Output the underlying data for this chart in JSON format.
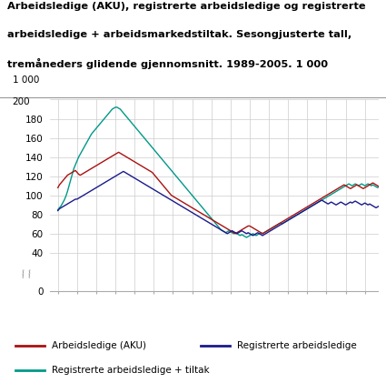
{
  "title_line1": "Arbeidsledige (AKU), registrerte arbeidsledige og registrerte",
  "title_line2": "arbeidsledige + arbeidsmarkedstiltak. Sesongjusterte tall,",
  "title_line3": "tremåneders glidende gjennomsnitt. 1989-2005. 1 000",
  "ylabel_top": "1 000",
  "ylim": [
    0,
    200
  ],
  "yticks": [
    0,
    40,
    60,
    80,
    100,
    120,
    140,
    160,
    180,
    200
  ],
  "color_aku": "#aa1111",
  "color_reg": "#1a1a8c",
  "color_tiltak": "#009988",
  "legend_labels": [
    "Arbeidsledige (AKU)",
    "Registrerte arbeidsledige",
    "Registrerte arbeidsledige + tiltak"
  ],
  "aku": [
    108,
    111,
    113,
    115,
    117,
    119,
    121,
    122,
    123,
    124,
    125,
    126,
    124,
    122,
    121,
    122,
    123,
    124,
    125,
    126,
    127,
    128,
    129,
    130,
    131,
    132,
    133,
    134,
    135,
    136,
    137,
    138,
    139,
    140,
    141,
    142,
    143,
    144,
    145,
    144,
    143,
    142,
    141,
    140,
    139,
    138,
    137,
    136,
    135,
    134,
    133,
    132,
    131,
    130,
    129,
    128,
    127,
    126,
    125,
    124,
    122,
    120,
    118,
    116,
    114,
    112,
    110,
    108,
    106,
    104,
    102,
    100,
    99,
    98,
    97,
    96,
    95,
    94,
    93,
    92,
    91,
    90,
    89,
    88,
    87,
    86,
    85,
    84,
    83,
    82,
    81,
    80,
    79,
    78,
    77,
    76,
    75,
    74,
    73,
    72,
    71,
    70,
    69,
    68,
    67,
    66,
    65,
    64,
    63,
    62,
    61,
    60,
    61,
    62,
    63,
    64,
    65,
    66,
    67,
    68,
    68,
    67,
    66,
    65,
    64,
    63,
    62,
    61,
    60,
    61,
    62,
    63,
    64,
    65,
    66,
    67,
    68,
    69,
    70,
    71,
    72,
    73,
    74,
    75,
    76,
    77,
    78,
    79,
    80,
    81,
    82,
    83,
    84,
    85,
    86,
    87,
    88,
    89,
    90,
    91,
    92,
    93,
    94,
    95,
    96,
    97,
    98,
    99,
    100,
    101,
    102,
    103,
    104,
    105,
    106,
    107,
    108,
    109,
    110,
    111,
    110,
    109,
    108,
    107,
    108,
    109,
    110,
    111,
    110,
    109,
    108,
    107,
    108,
    109,
    110,
    111,
    112,
    113,
    112,
    111,
    110,
    109,
    108,
    107,
    108,
    109,
    110,
    111,
    112,
    113,
    114,
    115,
    116,
    117,
    118,
    119,
    118,
    117,
    116,
    115,
    114,
    113,
    112,
    111,
    112,
    113,
    114,
    115,
    116,
    115,
    116,
    117,
    118,
    119,
    120,
    119,
    118,
    117,
    116,
    115
  ],
  "reg": [
    84,
    86,
    87,
    88,
    89,
    90,
    91,
    92,
    93,
    94,
    95,
    96,
    96,
    97,
    98,
    99,
    100,
    101,
    102,
    103,
    104,
    105,
    106,
    107,
    108,
    109,
    110,
    111,
    112,
    113,
    114,
    115,
    116,
    117,
    118,
    119,
    120,
    121,
    122,
    123,
    124,
    125,
    124,
    123,
    122,
    121,
    120,
    119,
    118,
    117,
    116,
    115,
    114,
    113,
    112,
    111,
    110,
    109,
    108,
    107,
    106,
    105,
    104,
    103,
    102,
    101,
    100,
    99,
    98,
    97,
    96,
    95,
    94,
    93,
    92,
    91,
    90,
    89,
    88,
    87,
    86,
    85,
    84,
    83,
    82,
    81,
    80,
    79,
    78,
    77,
    76,
    75,
    74,
    73,
    72,
    71,
    70,
    69,
    68,
    67,
    66,
    65,
    64,
    63,
    62,
    61,
    60,
    61,
    62,
    63,
    62,
    61,
    60,
    61,
    62,
    63,
    62,
    61,
    60,
    61,
    60,
    59,
    58,
    59,
    60,
    61,
    60,
    59,
    58,
    59,
    60,
    61,
    62,
    63,
    64,
    65,
    66,
    67,
    68,
    69,
    70,
    71,
    72,
    73,
    74,
    75,
    76,
    77,
    78,
    79,
    80,
    81,
    82,
    83,
    84,
    85,
    86,
    87,
    88,
    89,
    90,
    91,
    92,
    93,
    94,
    95,
    94,
    93,
    92,
    91,
    92,
    93,
    92,
    91,
    90,
    91,
    92,
    93,
    92,
    91,
    90,
    91,
    92,
    93,
    92,
    93,
    94,
    93,
    92,
    91,
    90,
    91,
    92,
    91,
    90,
    91,
    90,
    89,
    88,
    87,
    88,
    89,
    90,
    89,
    88,
    87,
    88,
    89,
    88,
    87,
    86,
    85,
    86,
    87,
    86,
    85,
    84,
    85,
    86,
    85,
    84,
    83,
    84,
    85,
    84,
    83,
    82,
    83,
    84,
    83,
    82,
    83,
    82,
    81,
    80,
    81,
    80,
    81,
    80,
    81,
    80,
    81,
    80,
    81,
    80,
    81
  ],
  "tiltak": [
    85,
    87,
    89,
    92,
    95,
    99,
    104,
    110,
    116,
    122,
    128,
    132,
    136,
    140,
    143,
    146,
    149,
    152,
    155,
    158,
    161,
    164,
    166,
    168,
    170,
    172,
    174,
    176,
    178,
    180,
    182,
    184,
    186,
    188,
    190,
    191,
    192,
    192,
    191,
    190,
    188,
    186,
    184,
    182,
    180,
    178,
    176,
    174,
    172,
    170,
    168,
    166,
    164,
    162,
    160,
    158,
    156,
    154,
    152,
    150,
    148,
    146,
    144,
    142,
    140,
    138,
    136,
    134,
    132,
    130,
    128,
    126,
    124,
    122,
    120,
    118,
    116,
    114,
    112,
    110,
    108,
    106,
    104,
    102,
    100,
    98,
    96,
    94,
    92,
    90,
    88,
    86,
    84,
    82,
    80,
    78,
    76,
    74,
    72,
    70,
    68,
    66,
    64,
    63,
    62,
    61,
    62,
    63,
    62,
    61,
    60,
    61,
    60,
    59,
    58,
    59,
    58,
    57,
    56,
    57,
    58,
    59,
    60,
    59,
    58,
    59,
    60,
    61,
    60,
    61,
    62,
    63,
    64,
    65,
    66,
    67,
    68,
    69,
    70,
    71,
    70,
    71,
    72,
    73,
    74,
    75,
    76,
    77,
    78,
    79,
    80,
    81,
    82,
    83,
    84,
    85,
    86,
    87,
    88,
    89,
    90,
    91,
    92,
    93,
    94,
    95,
    96,
    97,
    98,
    99,
    100,
    101,
    102,
    103,
    104,
    105,
    106,
    107,
    108,
    109,
    110,
    111,
    112,
    111,
    110,
    111,
    112,
    111,
    110,
    111,
    112,
    111,
    110,
    111,
    112,
    111,
    110,
    111,
    110,
    109,
    108,
    109,
    110,
    109,
    108,
    107,
    108,
    107,
    106,
    107,
    108,
    107,
    106,
    105,
    104,
    103,
    102,
    101,
    100,
    101,
    100,
    99,
    100,
    99,
    98,
    97,
    96,
    95
  ]
}
